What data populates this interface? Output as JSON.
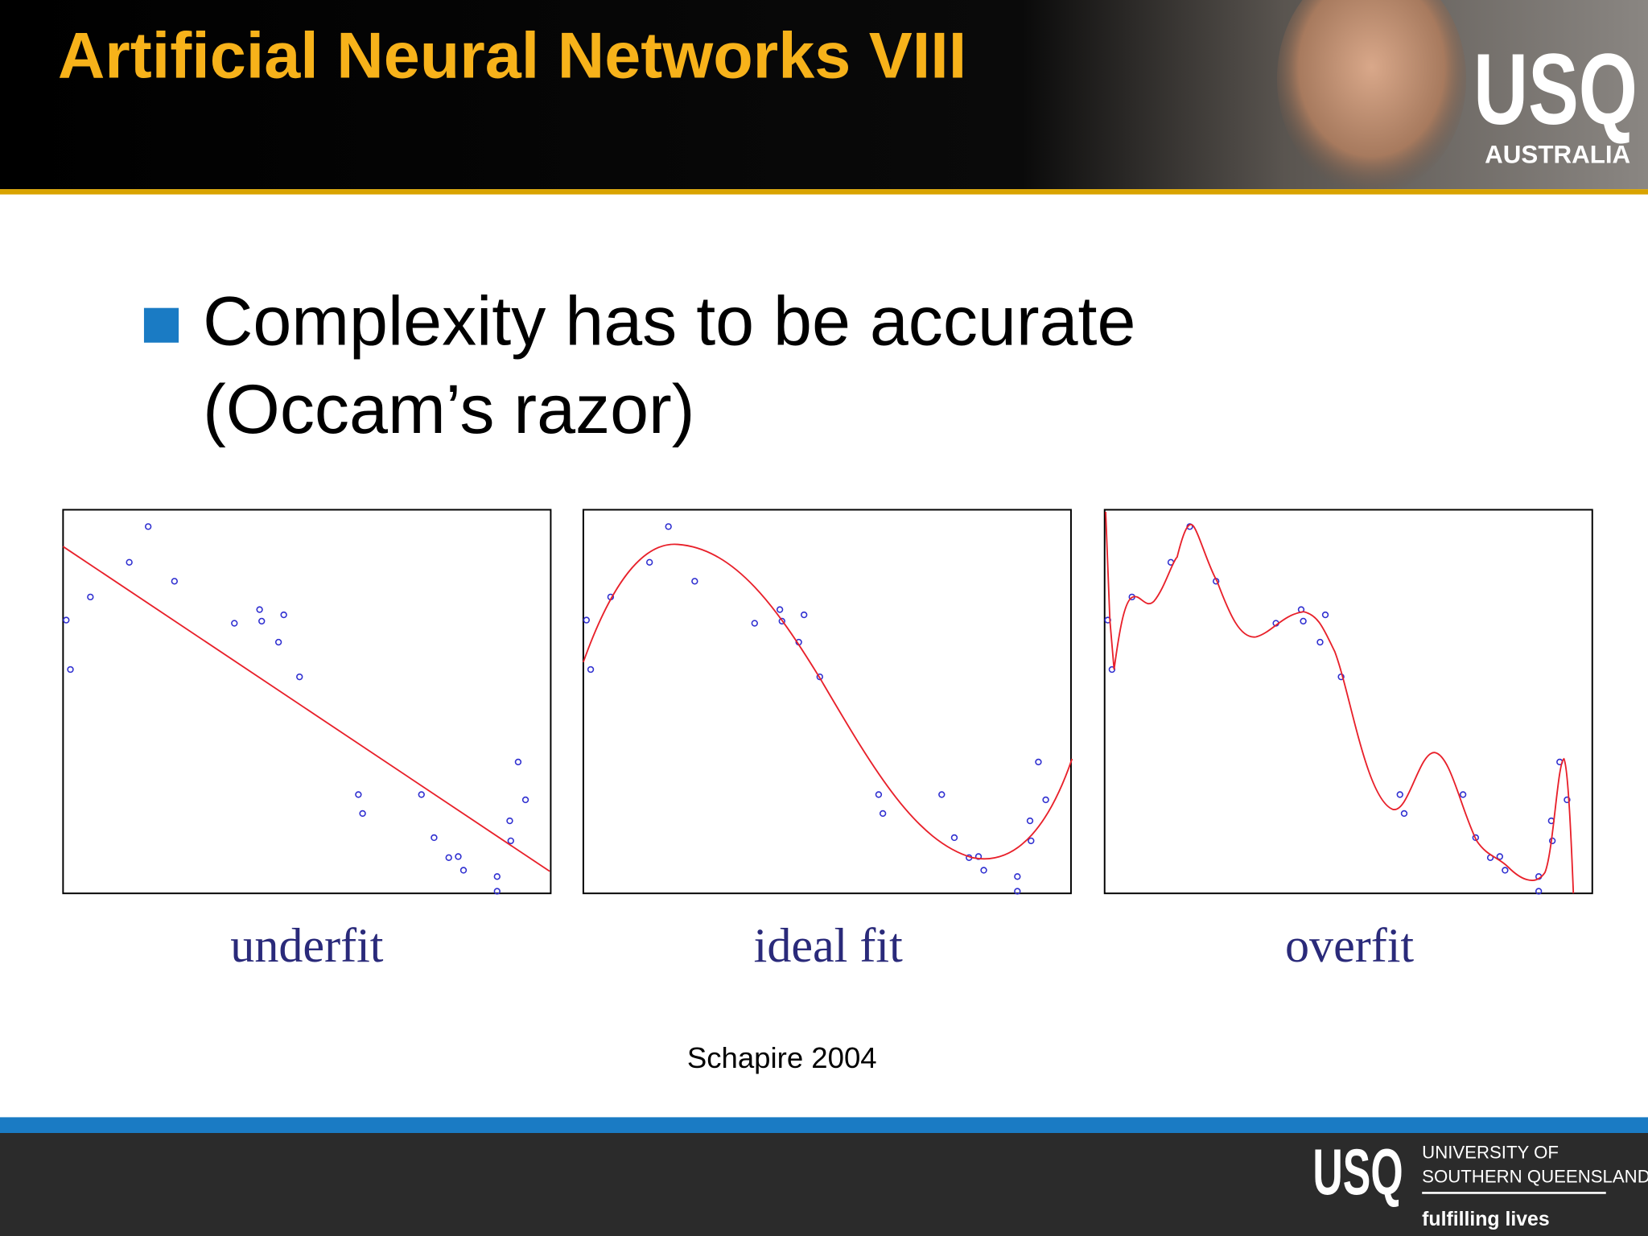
{
  "header": {
    "title": "Artificial Neural Networks VIII",
    "logo": "USQ",
    "logo_sub": "AUSTRALIA"
  },
  "bullet": {
    "lines": [
      "Complexity has to be accurate",
      "(Occam’s razor)"
    ]
  },
  "figure": {
    "captions": [
      "underfit",
      "ideal fit",
      "overfit"
    ],
    "credit": "Schapire 2004"
  },
  "footer": {
    "logo": "USQ",
    "university": [
      "UNIVERSITY OF",
      "SOUTHERN QUEENSLAND"
    ],
    "tagline": "fulfilling lives"
  }
}
